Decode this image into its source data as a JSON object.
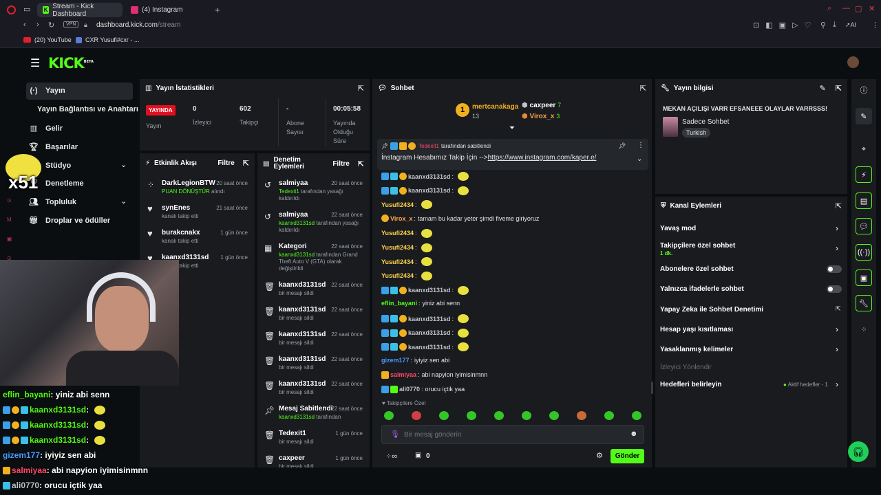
{
  "browser": {
    "tabs": [
      {
        "label": "Stream - Kick Dashboard",
        "active": true
      },
      {
        "label": "(4) Instagram",
        "active": false
      }
    ],
    "new_tab": "+",
    "vpn": "VPN",
    "url_host": "dashboard.kick.com",
    "url_path": "/stream",
    "bookmarks": [
      "(20) YouTube",
      "CXR Yusufi#cxr - ..."
    ],
    "ai_label": "AI"
  },
  "header": {
    "logo": "KICK",
    "logo_sup": "BETA"
  },
  "sidebar": {
    "items": [
      {
        "label": "Yayın",
        "icon": "radio-icon"
      },
      {
        "label": "Yayın Bağlantısı ve Anahtarı",
        "icon": ""
      },
      {
        "label": "Gelir",
        "icon": "chart-icon"
      },
      {
        "label": "Başarılar",
        "icon": "trophy-icon"
      },
      {
        "label": "Stüdyo",
        "icon": "studio-icon"
      },
      {
        "label": "Denetleme",
        "icon": "shield-icon"
      },
      {
        "label": "Topluluk",
        "icon": "community-icon"
      },
      {
        "label": "Droplar ve ödüller",
        "icon": "gift-icon"
      }
    ]
  },
  "stats": {
    "title": "Yayın İstatistikleri",
    "live_badge": "YAYINDA",
    "items": [
      {
        "value": "",
        "label": "Yayın"
      },
      {
        "value": "0",
        "label": "İzleyici"
      },
      {
        "value": "602",
        "label": "Takipçi"
      },
      {
        "value": "-",
        "label": "Abone Sayısı"
      },
      {
        "value": "00:05:58",
        "label": "Yayında Olduğu Süre"
      }
    ]
  },
  "activity": {
    "title": "Etkinlik Akışı",
    "filter": "Filtre",
    "rows": [
      {
        "name": "DarkLegionBTW",
        "time": "20 saat önce",
        "sub_green": "PUAN DÖNÜŞTÜR",
        "sub": " alındı"
      },
      {
        "name": "synEnes",
        "time": "21 saat önce",
        "sub_green": "",
        "sub": "kanalı takip etti"
      },
      {
        "name": "burakcnakx",
        "time": "1 gün önce",
        "sub_green": "",
        "sub": "kanalı takip etti"
      },
      {
        "name": "kaanxd3131sd",
        "time": "1 gün önce",
        "sub_green": "",
        "sub": "kanalı takip etti"
      }
    ]
  },
  "moderation": {
    "title_line1": "Denetim",
    "title_line2": "Eylemleri",
    "filter": "Filtre",
    "rows": [
      {
        "name": "salmiyaa",
        "time": "20 saat önce",
        "green": "Tedexit1",
        "rest": " tarafından yasağı kaldırıldı"
      },
      {
        "name": "salmiyaa",
        "time": "22 saat önce",
        "green": "kaanxd3131sd",
        "rest": " tarafından yasağı kaldırıldı"
      },
      {
        "name": "Kategori",
        "time": "22 saat önce",
        "green": "kaanxd3131sd",
        "rest": " tarafından Grand Theft Auto V (GTA) olarak değiştirildi"
      },
      {
        "name": "kaanxd3131sd",
        "time": "22 saat önce",
        "green": "",
        "rest": "bir mesajı sildi"
      },
      {
        "name": "kaanxd3131sd",
        "time": "22 saat önce",
        "green": "",
        "rest": "bir mesajı sildi"
      },
      {
        "name": "kaanxd3131sd",
        "time": "22 saat önce",
        "green": "",
        "rest": "bir mesajı sildi"
      },
      {
        "name": "kaanxd3131sd",
        "time": "22 saat önce",
        "green": "",
        "rest": "bir mesajı sildi"
      },
      {
        "name": "kaanxd3131sd",
        "time": "22 saat önce",
        "green": "",
        "rest": "bir mesajı sildi"
      },
      {
        "name": "Mesaj Sabitlendi",
        "time": "22 saat önce",
        "green": "kaanxd3131sd",
        "rest": " tarafından"
      },
      {
        "name": "Tedexit1",
        "time": "1 gün önce",
        "green": "",
        "rest": "bir mesajı sildi"
      },
      {
        "name": "caxpeer",
        "time": "1 gün önce",
        "green": "",
        "rest": "bir mesajı sildi"
      }
    ]
  },
  "chat": {
    "title": "Sohbet",
    "leaders": [
      {
        "name": "mertcanakaga",
        "count": "13"
      },
      {
        "name": "caxpeer",
        "count": "7"
      },
      {
        "name": "Virox_x",
        "count": "3"
      }
    ],
    "pinned": {
      "by": "Tedexit1",
      "by_suffix": "tarafından sabitlendi",
      "text": "İnstagram Hesabımız Takip İçin -->",
      "link": "https://www.instagram.com/kaper.e/"
    },
    "messages": [
      {
        "user": "kaanxd3131sd",
        "color": "#c0c4c8",
        "text": "",
        "emote": true
      },
      {
        "user": "kaanxd3131sd",
        "color": "#c0c4c8",
        "text": "",
        "emote": true
      },
      {
        "user": "Yusufi2434",
        "color": "#ffd24a",
        "text": "",
        "emote": true
      },
      {
        "user": "Virox_x",
        "color": "#ffa34a",
        "text": "tamam bu kadar yeter şimdi fiveme giriyoruz",
        "emote": false
      },
      {
        "user": "Yusufi2434",
        "color": "#ffd24a",
        "text": "",
        "emote": true
      },
      {
        "user": "Yusufi2434",
        "color": "#ffd24a",
        "text": "",
        "emote": true
      },
      {
        "user": "Yusufi2434",
        "color": "#ffd24a",
        "text": "",
        "emote": true
      },
      {
        "user": "Yusufi2434",
        "color": "#ffd24a",
        "text": "",
        "emote": true
      },
      {
        "user": "kaanxd3131sd",
        "color": "#c0c4c8",
        "text": "",
        "emote": true
      },
      {
        "user": "eflin_bayani",
        "color": "#53fc18",
        "text": "yiniz abi senn",
        "emote": false
      },
      {
        "user": "kaanxd3131sd",
        "color": "#c0c4c8",
        "text": "",
        "emote": true
      },
      {
        "user": "kaanxd3131sd",
        "color": "#c0c4c8",
        "text": "",
        "emote": true
      },
      {
        "user": "kaanxd3131sd",
        "color": "#c0c4c8",
        "text": "",
        "emote": true
      },
      {
        "user": "gizem177",
        "color": "#4a9bff",
        "text": "iyiyiz sen abi",
        "emote": false
      },
      {
        "user": "salmiyaa",
        "color": "#ff4a6a",
        "text": "abi napyion iyimisinmnn",
        "emote": false
      },
      {
        "user": "ali0770",
        "color": "#c0c4c8",
        "text": "orucu içtik yaa",
        "emote": false
      }
    ],
    "followers_only": "Takipçilere Özel",
    "input_placeholder": "Bir mesaj gönderin",
    "points": "0",
    "send": "Gönder"
  },
  "stream_info": {
    "title": "Yayın bilgisi",
    "stream_title": "MEKAN AÇILIŞI VARR EFSANEEE OLAYLAR VARRSSS!",
    "category": "Sadece Sohbet",
    "language": "Turkish"
  },
  "channel_actions": {
    "title": "Kanal Eylemleri",
    "slow_mode": "Yavaş mod",
    "followers_chat": "Takipçilere özel sohbet",
    "followers_chat_sub": "1 dk.",
    "subs_chat": "Abonelere özel sohbet",
    "emotes_chat": "Yalnızca ifadelerle sohbet",
    "ai_mod": "Yapay Zeka ile Sohbet Denetimi",
    "account_age": "Hesap yaşı kısıtlaması",
    "banned_words": "Yasaklanmış kelimeler",
    "viewer_redirect": "İzleyici Yönlendir",
    "goals": "Hedefleri belirleyin",
    "goals_status": "Aktif hedefler - 1"
  },
  "overlay": {
    "multiplier": "x51",
    "cam_chat": [
      {
        "user": "eflin_bayani",
        "color": "#53fc18",
        "text": " : yiniz abi senn"
      },
      {
        "user": "kaanxd3131sd",
        "color": "#53fc18",
        "text": " :"
      },
      {
        "user": "kaanxd3131sd",
        "color": "#53fc18",
        "text": " :"
      },
      {
        "user": "kaanxd3131sd",
        "color": "#53fc18",
        "text": " :"
      },
      {
        "user": "gizem177",
        "color": "#4a9bff",
        "text": " : iyiyiz sen abi"
      },
      {
        "user": "salmiyaa",
        "color": "#ff4a6a",
        "text": " : abi napyion iyimisinmnn"
      },
      {
        "user": "ali0770",
        "color": "#c0c4c8",
        "text": " : orucu içtik yaa"
      }
    ]
  }
}
